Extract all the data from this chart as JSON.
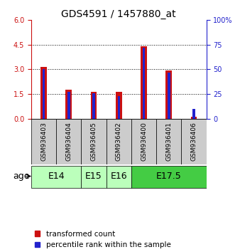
{
  "title": "GDS4591 / 1457880_at",
  "samples": [
    "GSM936403",
    "GSM936404",
    "GSM936405",
    "GSM936402",
    "GSM936400",
    "GSM936401",
    "GSM936406"
  ],
  "transformed_count": [
    3.15,
    1.75,
    1.65,
    1.62,
    4.42,
    2.92,
    0.12
  ],
  "percentile_rank": [
    50,
    27,
    26,
    23,
    72,
    47,
    10
  ],
  "age_group_spans": [
    {
      "label": "E14",
      "start": 0,
      "end": 2,
      "color": "#bbffbb"
    },
    {
      "label": "E15",
      "start": 2,
      "end": 3,
      "color": "#bbffbb"
    },
    {
      "label": "E16",
      "start": 3,
      "end": 4,
      "color": "#bbffbb"
    },
    {
      "label": "E17.5",
      "start": 4,
      "end": 7,
      "color": "#44cc44"
    }
  ],
  "left_ylim": [
    0,
    6
  ],
  "left_yticks": [
    0,
    1.5,
    3,
    4.5,
    6
  ],
  "right_ylim": [
    0,
    100
  ],
  "right_yticks": [
    0,
    25,
    50,
    75,
    100
  ],
  "bar_color_red": "#cc1111",
  "bar_color_blue": "#2222cc",
  "bar_width": 0.25,
  "blue_bar_width": 0.1,
  "background_color": "#ffffff",
  "sample_bg_color": "#cccccc",
  "title_fontsize": 10,
  "tick_fontsize": 7,
  "sample_fontsize": 6.5,
  "legend_fontsize": 7.5,
  "age_label_fontsize": 9
}
